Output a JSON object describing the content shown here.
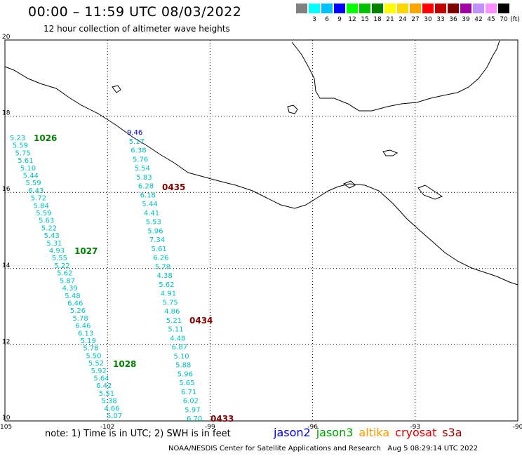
{
  "title": "00:00 – 11:59 UTC 08/03/2022",
  "subtitle": "12 hour collection of altimeter wave heights",
  "colorbar": {
    "unit": "(ft)",
    "bins": [
      {
        "color": "#808080",
        "label": ""
      },
      {
        "color": "#00ffff",
        "label": "3"
      },
      {
        "color": "#00c0ff",
        "label": "6"
      },
      {
        "color": "#0000ff",
        "label": "9"
      },
      {
        "color": "#00ff00",
        "label": "12"
      },
      {
        "color": "#00c000",
        "label": "15"
      },
      {
        "color": "#008000",
        "label": "18"
      },
      {
        "color": "#ffff00",
        "label": "21"
      },
      {
        "color": "#ffd700",
        "label": "24"
      },
      {
        "color": "#ffa500",
        "label": "27"
      },
      {
        "color": "#ff0000",
        "label": "30"
      },
      {
        "color": "#c00000",
        "label": "33"
      },
      {
        "color": "#800000",
        "label": "36"
      },
      {
        "color": "#a000a0",
        "label": "39"
      },
      {
        "color": "#c090ff",
        "label": "42"
      },
      {
        "color": "#ff90ff",
        "label": "45"
      },
      {
        "color": "#000000",
        "label": "70"
      }
    ]
  },
  "axes": {
    "lon_ticks": [
      "-105",
      "-102",
      "-99",
      "-96",
      "-93",
      "-90"
    ],
    "lat_ticks": [
      "20",
      "18",
      "16",
      "14",
      "12",
      "10"
    ]
  },
  "tracks": [
    {
      "satellite": "jason3",
      "color": "#00c0c0",
      "values": [
        "5.23",
        "5.59",
        "5.75",
        "5.61",
        "5.10",
        "5.44",
        "5.59",
        "6.43",
        "5.72",
        "5.84",
        "5.59",
        "5.63",
        "5.22",
        "5.43",
        "5.31",
        "4.93",
        "5.55",
        "5.22",
        "5.62",
        "5.87",
        "4.39",
        "5.48",
        "6.46",
        "5.26",
        "5.78",
        "6.46",
        "6.13",
        "5.19",
        "5.78",
        "5.50",
        "5.52",
        "5.92",
        "5.64",
        "6.42",
        "5.51",
        "5.38",
        "4.66",
        "5.07"
      ]
    },
    {
      "satellite": "jason3",
      "color": "#00c0c0",
      "values": [
        "9.46",
        "5.17",
        "6.38",
        "5.76",
        "5.54",
        "5.83",
        "6.28",
        "6.18",
        "5.44",
        "4.41",
        "5.53",
        "5.96",
        "7.34",
        "5.61",
        "6.26",
        "5.78",
        "4.38",
        "5.62",
        "4.91",
        "5.75",
        "4.86",
        "5.21",
        "5.11",
        "4.48",
        "6.87",
        "5.10",
        "5.88",
        "5.96",
        "5.65",
        "6.71",
        "6.02",
        "5.97",
        "6.70"
      ]
    }
  ],
  "pass_labels": [
    {
      "text": "1026",
      "color": "#008000"
    },
    {
      "text": "1027",
      "color": "#008000"
    },
    {
      "text": "1028",
      "color": "#008000"
    },
    {
      "text": "0435",
      "color": "#800000"
    },
    {
      "text": "0434",
      "color": "#800000"
    },
    {
      "text": "0433",
      "color": "#800000"
    }
  ],
  "note": "note: 1) Time is in UTC; 2) SWH is in feet",
  "satellites": [
    {
      "name": "jason2",
      "color": "#0000e0"
    },
    {
      "name": "jason3",
      "color": "#00a000"
    },
    {
      "name": "altika",
      "color": "#ff9900"
    },
    {
      "name": "cryosat",
      "color": "#e00000"
    },
    {
      "name": "s3a",
      "color": "#a00000"
    }
  ],
  "credit": "NOAA/NESDIS Center for Satellite Applications and Research",
  "timestamp": "Aug  5 08:29:14 UTC 2022"
}
